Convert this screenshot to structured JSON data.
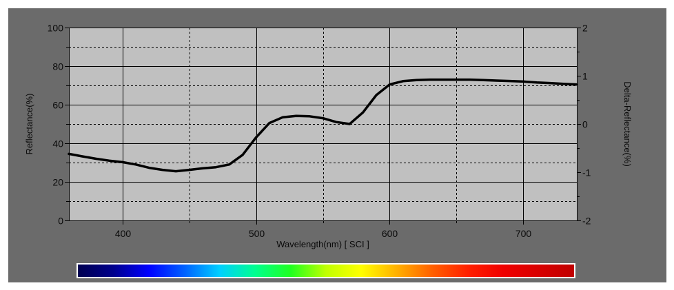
{
  "chart_data": {
    "type": "line",
    "xlabel": "Wavelength(nm) [ SCI ]",
    "ylabel": "Reflectance(%)",
    "y2label": "Delta-Reflectance(%)",
    "xlim": [
      360,
      740
    ],
    "ylim": [
      0,
      100
    ],
    "y2lim": [
      -2,
      2
    ],
    "x_ticks": [
      400,
      500,
      600,
      700
    ],
    "y_ticks": [
      0,
      20,
      40,
      60,
      80,
      100
    ],
    "y2_ticks": [
      -2,
      -1,
      0,
      1,
      2
    ],
    "grid": true,
    "grid_style": "solid major lines, dashed minor lines",
    "plot_background": "#c0c0c0",
    "panel_background": "#6b6b6b",
    "line_color": "#000000",
    "series": [
      {
        "x": [
          360,
          370,
          380,
          390,
          400,
          410,
          420,
          430,
          440,
          450,
          460,
          470,
          480,
          490,
          500,
          510,
          520,
          530,
          540,
          550,
          560,
          570,
          580,
          590,
          600,
          610,
          620,
          630,
          640,
          650,
          660,
          670,
          680,
          690,
          700,
          710,
          720,
          730,
          740
        ],
        "y": [
          34.5,
          33.2,
          32,
          31,
          30.2,
          29,
          27.3,
          26.2,
          25.5,
          26.2,
          27,
          27.6,
          29,
          34,
          43,
          50.5,
          53.5,
          54.2,
          54,
          53,
          51,
          50,
          56,
          65,
          70.5,
          72.2,
          72.8,
          73,
          73,
          73,
          73,
          72.8,
          72.5,
          72.3,
          72,
          71.5,
          71.2,
          70.8,
          70.5
        ]
      }
    ]
  },
  "spectrum_bar": {
    "colors": [
      "#000050",
      "#00008c",
      "#0000ff",
      "#0060ff",
      "#00d0ff",
      "#00ff90",
      "#20ff20",
      "#c0ff00",
      "#ffff00",
      "#ffb000",
      "#ff6000",
      "#ff2000",
      "#f00000",
      "#d80000",
      "#c00000"
    ]
  }
}
